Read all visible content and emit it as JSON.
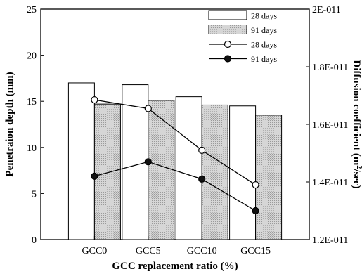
{
  "chart_data": {
    "type": "bar",
    "categories": [
      "GCC0",
      "GCC5",
      "GCC10",
      "GCC15"
    ],
    "xlabel": "GCC replacement ratio (%)",
    "y_left": {
      "label": "Penetraion depth (mm)",
      "range": [
        0,
        25
      ],
      "ticks": [
        "0",
        "5",
        "10",
        "15",
        "20",
        "25"
      ]
    },
    "y_right": {
      "label_main": "Diffusion coefficient (m",
      "label_sup": "2",
      "label_end": "/sec)",
      "range": [
        1.2e-11,
        2e-11
      ],
      "ticks": [
        "1.2E-011",
        "1.4E-011",
        "1.6E-011",
        "1.8E-011",
        "2E-011"
      ]
    },
    "series": [
      {
        "name": "28 days",
        "kind": "bar",
        "axis": "left",
        "fill": "#ffffff",
        "values": [
          17.0,
          16.8,
          15.5,
          14.5
        ]
      },
      {
        "name": "91 days",
        "kind": "bar",
        "axis": "left",
        "fill": "#cfcfcf",
        "values": [
          14.7,
          15.1,
          14.6,
          13.5
        ]
      },
      {
        "name": "28 days",
        "kind": "line",
        "axis": "right",
        "marker": "open-circle",
        "values": [
          1.685e-11,
          1.655e-11,
          1.51e-11,
          1.39e-11
        ]
      },
      {
        "name": "91 days",
        "kind": "line",
        "axis": "right",
        "marker": "filled-circle",
        "values": [
          1.42e-11,
          1.47e-11,
          1.41e-11,
          1.3e-11
        ]
      }
    ],
    "legend_position": "top-right",
    "grid": false
  }
}
